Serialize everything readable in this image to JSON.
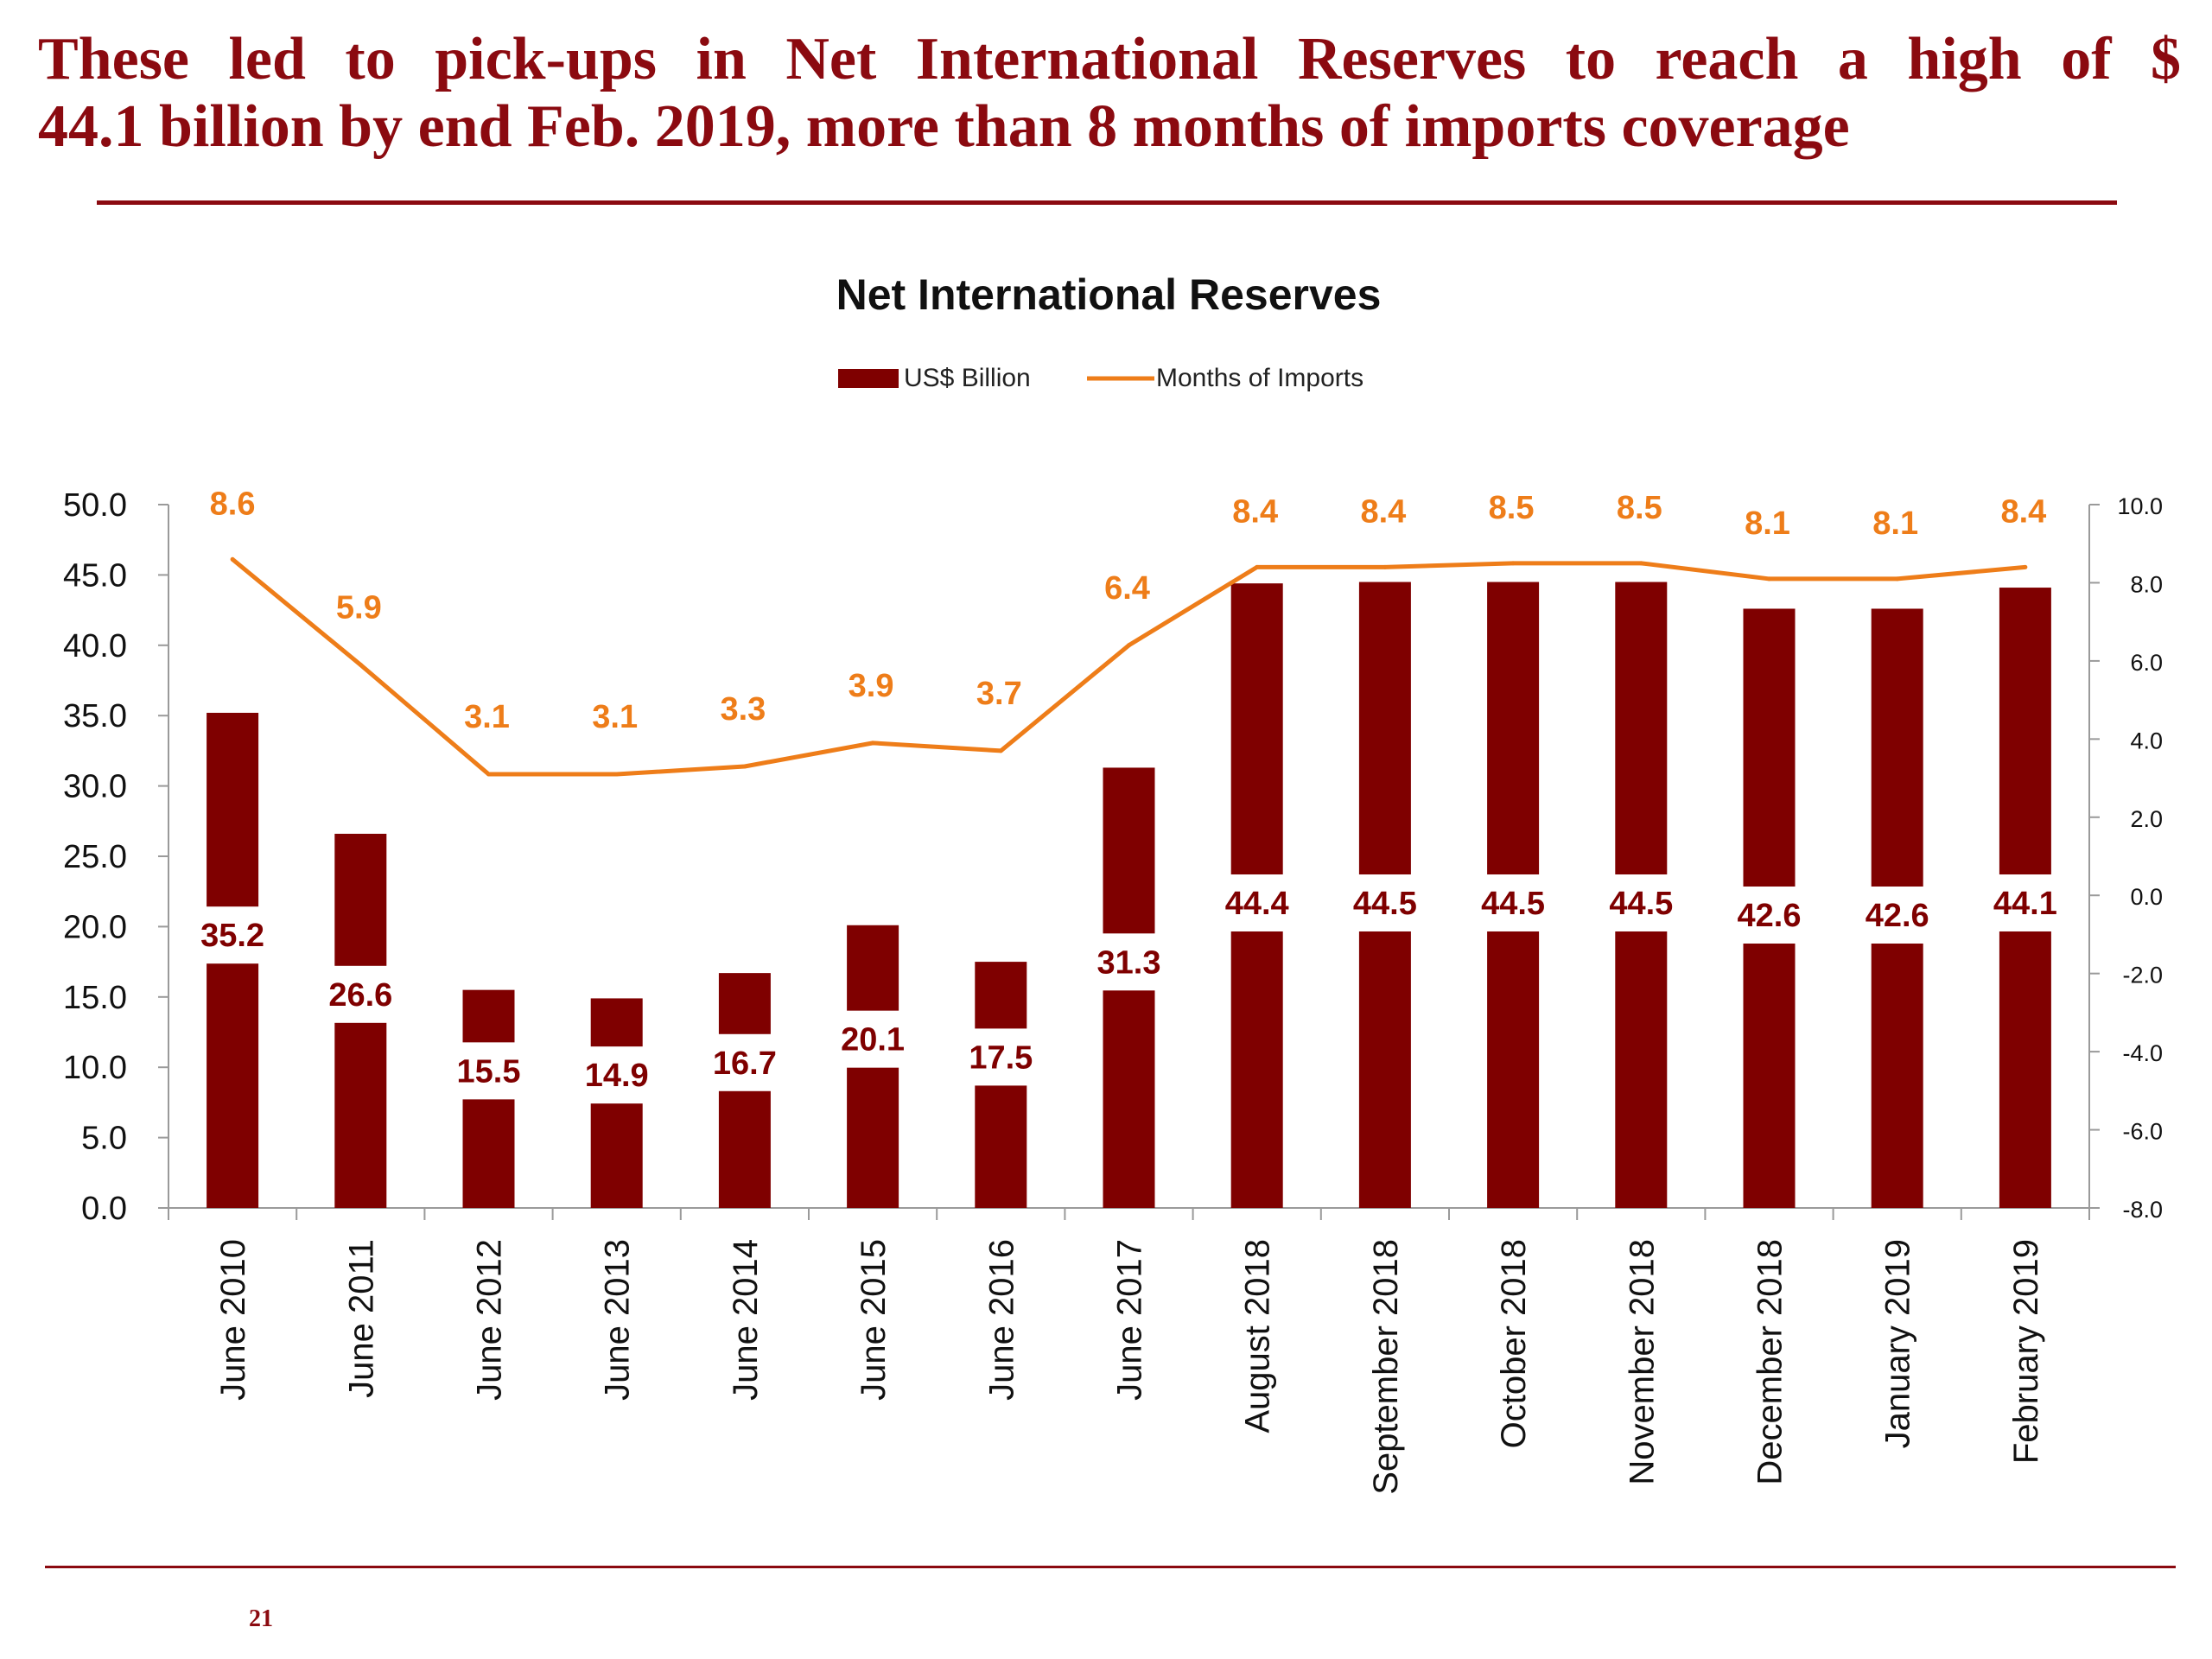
{
  "headline": {
    "line1": "These led to pick-ups in Net International Reserves to reach a high of $",
    "line2": "44.1 billion by end Feb. 2019, more than 8 months of imports coverage"
  },
  "page_number": "21",
  "colors": {
    "bar": "#7f0000",
    "line": "#ee7d19",
    "headline": "#8b0a10",
    "axis": "#9a9a9a"
  },
  "chart_data": {
    "type": "bar",
    "title": "Net International Reserves",
    "categories": [
      "June 2010",
      "June 2011",
      "June 2012",
      "June 2013",
      "June 2014",
      "June 2015",
      "June 2016",
      "June 2017",
      "August 2018",
      "September 2018",
      "October 2018",
      "November 2018",
      "December 2018",
      "January 2019",
      "February 2019"
    ],
    "series": [
      {
        "name": "US$ Billion",
        "type": "bar",
        "axis": "left",
        "values": [
          35.2,
          26.6,
          15.5,
          14.9,
          16.7,
          20.1,
          17.5,
          31.3,
          44.4,
          44.5,
          44.5,
          44.5,
          42.6,
          42.6,
          44.1
        ],
        "labels": [
          "35.2",
          "26.6",
          "15.5",
          "14.9",
          "16.7",
          "20.1",
          "17.5",
          "31.3",
          "44.4",
          "44.5",
          "44.5",
          "44.5",
          "42.6",
          "42.6",
          "44.1"
        ]
      },
      {
        "name": "Months of Imports",
        "type": "line",
        "axis": "right",
        "values": [
          8.6,
          5.9,
          3.1,
          3.1,
          3.3,
          3.9,
          3.7,
          6.4,
          8.4,
          8.4,
          8.5,
          8.5,
          8.1,
          8.1,
          8.4
        ],
        "labels": [
          "8.6",
          "5.9",
          "3.1",
          "3.1",
          "3.3",
          "3.9",
          "3.7",
          "6.4",
          "8.4",
          "8.4",
          "8.5",
          "8.5",
          "8.1",
          "8.1",
          "8.4"
        ]
      }
    ],
    "y_left": {
      "range": [
        0,
        50
      ],
      "ticks": [
        "0.0",
        "5.0",
        "10.0",
        "15.0",
        "20.0",
        "25.0",
        "30.0",
        "35.0",
        "40.0",
        "45.0",
        "50.0"
      ]
    },
    "y_right": {
      "range": [
        -8,
        10
      ],
      "ticks": [
        "-8.0",
        "-6.0",
        "-4.0",
        "-2.0",
        "0.0",
        "2.0",
        "4.0",
        "6.0",
        "8.0",
        "10.0"
      ]
    },
    "grid": false,
    "legend_position": "top-center"
  }
}
